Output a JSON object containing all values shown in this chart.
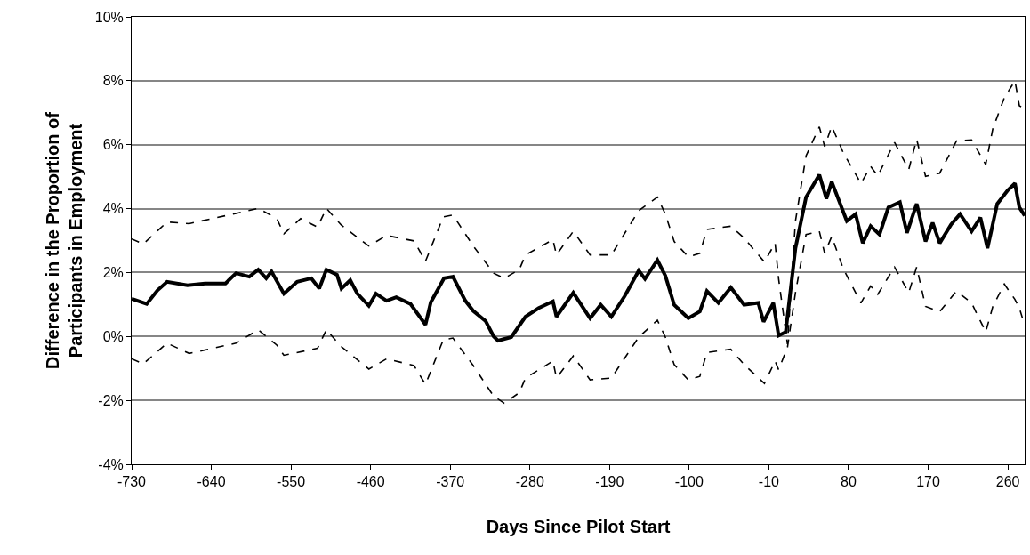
{
  "chart_data": {
    "type": "line",
    "xlabel": "Days Since Pilot Start",
    "ylabel": "Difference in the Proportion of\nParticipants in Employment",
    "xlim": [
      -730,
      279
    ],
    "xticks": [
      -730,
      -640,
      -550,
      -460,
      -370,
      -280,
      -190,
      -100,
      -10,
      80,
      170,
      260
    ],
    "ylim": [
      -4,
      10
    ],
    "yticks": [
      {
        "value": -4,
        "label": "-4%"
      },
      {
        "value": -2,
        "label": "-2%"
      },
      {
        "value": 0,
        "label": "0%"
      },
      {
        "value": 2,
        "label": "2%"
      },
      {
        "value": 4,
        "label": "4%"
      },
      {
        "value": 6,
        "label": "6%"
      },
      {
        "value": 8,
        "label": "8%"
      },
      {
        "value": 10,
        "label": "10%"
      }
    ],
    "grid": "y",
    "series": [
      {
        "color": "#000000",
        "line_style": "dashed",
        "x": [
          -730,
          -717,
          -690,
          -665,
          -612,
          -587,
          -566,
          -558,
          -539,
          -520,
          -510,
          -493,
          -462,
          -442,
          -411,
          -398,
          -378,
          -367,
          -344,
          -321,
          -309,
          -292,
          -285,
          -254,
          -250,
          -231,
          -212,
          -188,
          -157,
          -136,
          -127,
          -117,
          -101,
          -88,
          -80,
          -53,
          -38,
          -15,
          -3,
          1,
          11,
          20,
          32,
          47,
          53,
          61,
          74,
          94,
          105,
          113,
          132,
          148,
          157,
          167,
          183,
          202,
          219,
          235,
          243,
          256,
          268,
          273,
          279
        ],
        "values": [
          3.05,
          2.89,
          3.58,
          3.53,
          3.85,
          4.01,
          3.69,
          3.21,
          3.69,
          3.42,
          4.01,
          3.48,
          2.83,
          3.16,
          2.99,
          2.35,
          3.74,
          3.8,
          2.83,
          1.98,
          1.82,
          2.09,
          2.55,
          3.03,
          2.55,
          3.29,
          2.55,
          2.55,
          3.94,
          4.36,
          3.83,
          2.97,
          2.49,
          2.6,
          3.35,
          3.45,
          3.08,
          2.33,
          2.92,
          1.8,
          -0.24,
          3.61,
          5.65,
          6.56,
          5.94,
          6.58,
          5.75,
          4.79,
          5.32,
          5.03,
          6.07,
          5.22,
          6.17,
          5.01,
          5.11,
          6.12,
          6.15,
          5.38,
          6.5,
          7.47,
          8.0,
          7.22,
          7.12
        ]
      },
      {
        "color": "#000000",
        "line_style": "solid",
        "x": [
          -730,
          -713,
          -701,
          -690,
          -667,
          -647,
          -624,
          -612,
          -597,
          -587,
          -578,
          -572,
          -558,
          -543,
          -527,
          -518,
          -510,
          -498,
          -493,
          -483,
          -475,
          -462,
          -454,
          -442,
          -431,
          -415,
          -398,
          -392,
          -377,
          -367,
          -353,
          -344,
          -330,
          -321,
          -316,
          -301,
          -285,
          -270,
          -254,
          -250,
          -231,
          -212,
          -200,
          -188,
          -173,
          -157,
          -150,
          -136,
          -127,
          -117,
          -101,
          -88,
          -80,
          -67,
          -53,
          -38,
          -22,
          -16,
          -5,
          1,
          9,
          20,
          32,
          47,
          55,
          61,
          78,
          88,
          96,
          105,
          115,
          125,
          138,
          146,
          157,
          167,
          175,
          183,
          196,
          206,
          219,
          229,
          237,
          248,
          260,
          268,
          273,
          279
        ],
        "values": [
          1.18,
          1.02,
          1.44,
          1.71,
          1.6,
          1.66,
          1.66,
          1.98,
          1.87,
          2.09,
          1.82,
          2.03,
          1.34,
          1.71,
          1.82,
          1.5,
          2.09,
          1.93,
          1.5,
          1.76,
          1.34,
          0.96,
          1.34,
          1.12,
          1.23,
          1.02,
          0.37,
          1.07,
          1.82,
          1.87,
          1.12,
          0.8,
          0.48,
          0.0,
          -0.13,
          -0.02,
          0.62,
          0.89,
          1.1,
          0.62,
          1.37,
          0.57,
          0.99,
          0.62,
          1.26,
          2.06,
          1.8,
          2.39,
          1.9,
          0.99,
          0.57,
          0.78,
          1.42,
          1.05,
          1.53,
          0.99,
          1.05,
          0.46,
          1.05,
          0.03,
          0.14,
          2.76,
          4.36,
          5.06,
          4.31,
          4.84,
          3.61,
          3.83,
          2.92,
          3.45,
          3.19,
          4.04,
          4.2,
          3.24,
          4.15,
          2.97,
          3.56,
          2.92,
          3.51,
          3.83,
          3.29,
          3.72,
          2.76,
          4.15,
          4.58,
          4.79,
          4.04,
          3.78
        ]
      },
      {
        "color": "#000000",
        "line_style": "dashed",
        "x": [
          -730,
          -717,
          -690,
          -665,
          -612,
          -587,
          -566,
          -558,
          -520,
          -510,
          -493,
          -462,
          -442,
          -411,
          -398,
          -378,
          -367,
          -344,
          -321,
          -309,
          -292,
          -285,
          -254,
          -250,
          -231,
          -212,
          -188,
          -157,
          -136,
          -127,
          -117,
          -101,
          -88,
          -80,
          -53,
          -38,
          -15,
          -3,
          1,
          11,
          20,
          32,
          47,
          53,
          61,
          74,
          94,
          105,
          113,
          132,
          148,
          157,
          167,
          183,
          202,
          219,
          235,
          243,
          256,
          268,
          273,
          279
        ],
        "values": [
          -0.7,
          -0.86,
          -0.21,
          -0.53,
          -0.21,
          0.21,
          -0.27,
          -0.59,
          -0.37,
          0.21,
          -0.32,
          -1.02,
          -0.7,
          -0.91,
          -1.5,
          -0.11,
          -0.05,
          -0.91,
          -1.87,
          -2.09,
          -1.76,
          -1.3,
          -0.77,
          -1.3,
          -0.61,
          -1.36,
          -1.3,
          -0.02,
          0.51,
          -0.02,
          -0.88,
          -1.36,
          -1.25,
          -0.5,
          -0.4,
          -0.88,
          -1.47,
          -0.77,
          -1.04,
          -0.34,
          1.37,
          3.19,
          3.29,
          2.6,
          3.13,
          2.12,
          1.05,
          1.58,
          1.32,
          2.17,
          1.37,
          2.17,
          0.94,
          0.78,
          1.42,
          1.05,
          0.14,
          0.94,
          1.64,
          1.16,
          0.89,
          0.35
        ]
      }
    ]
  }
}
